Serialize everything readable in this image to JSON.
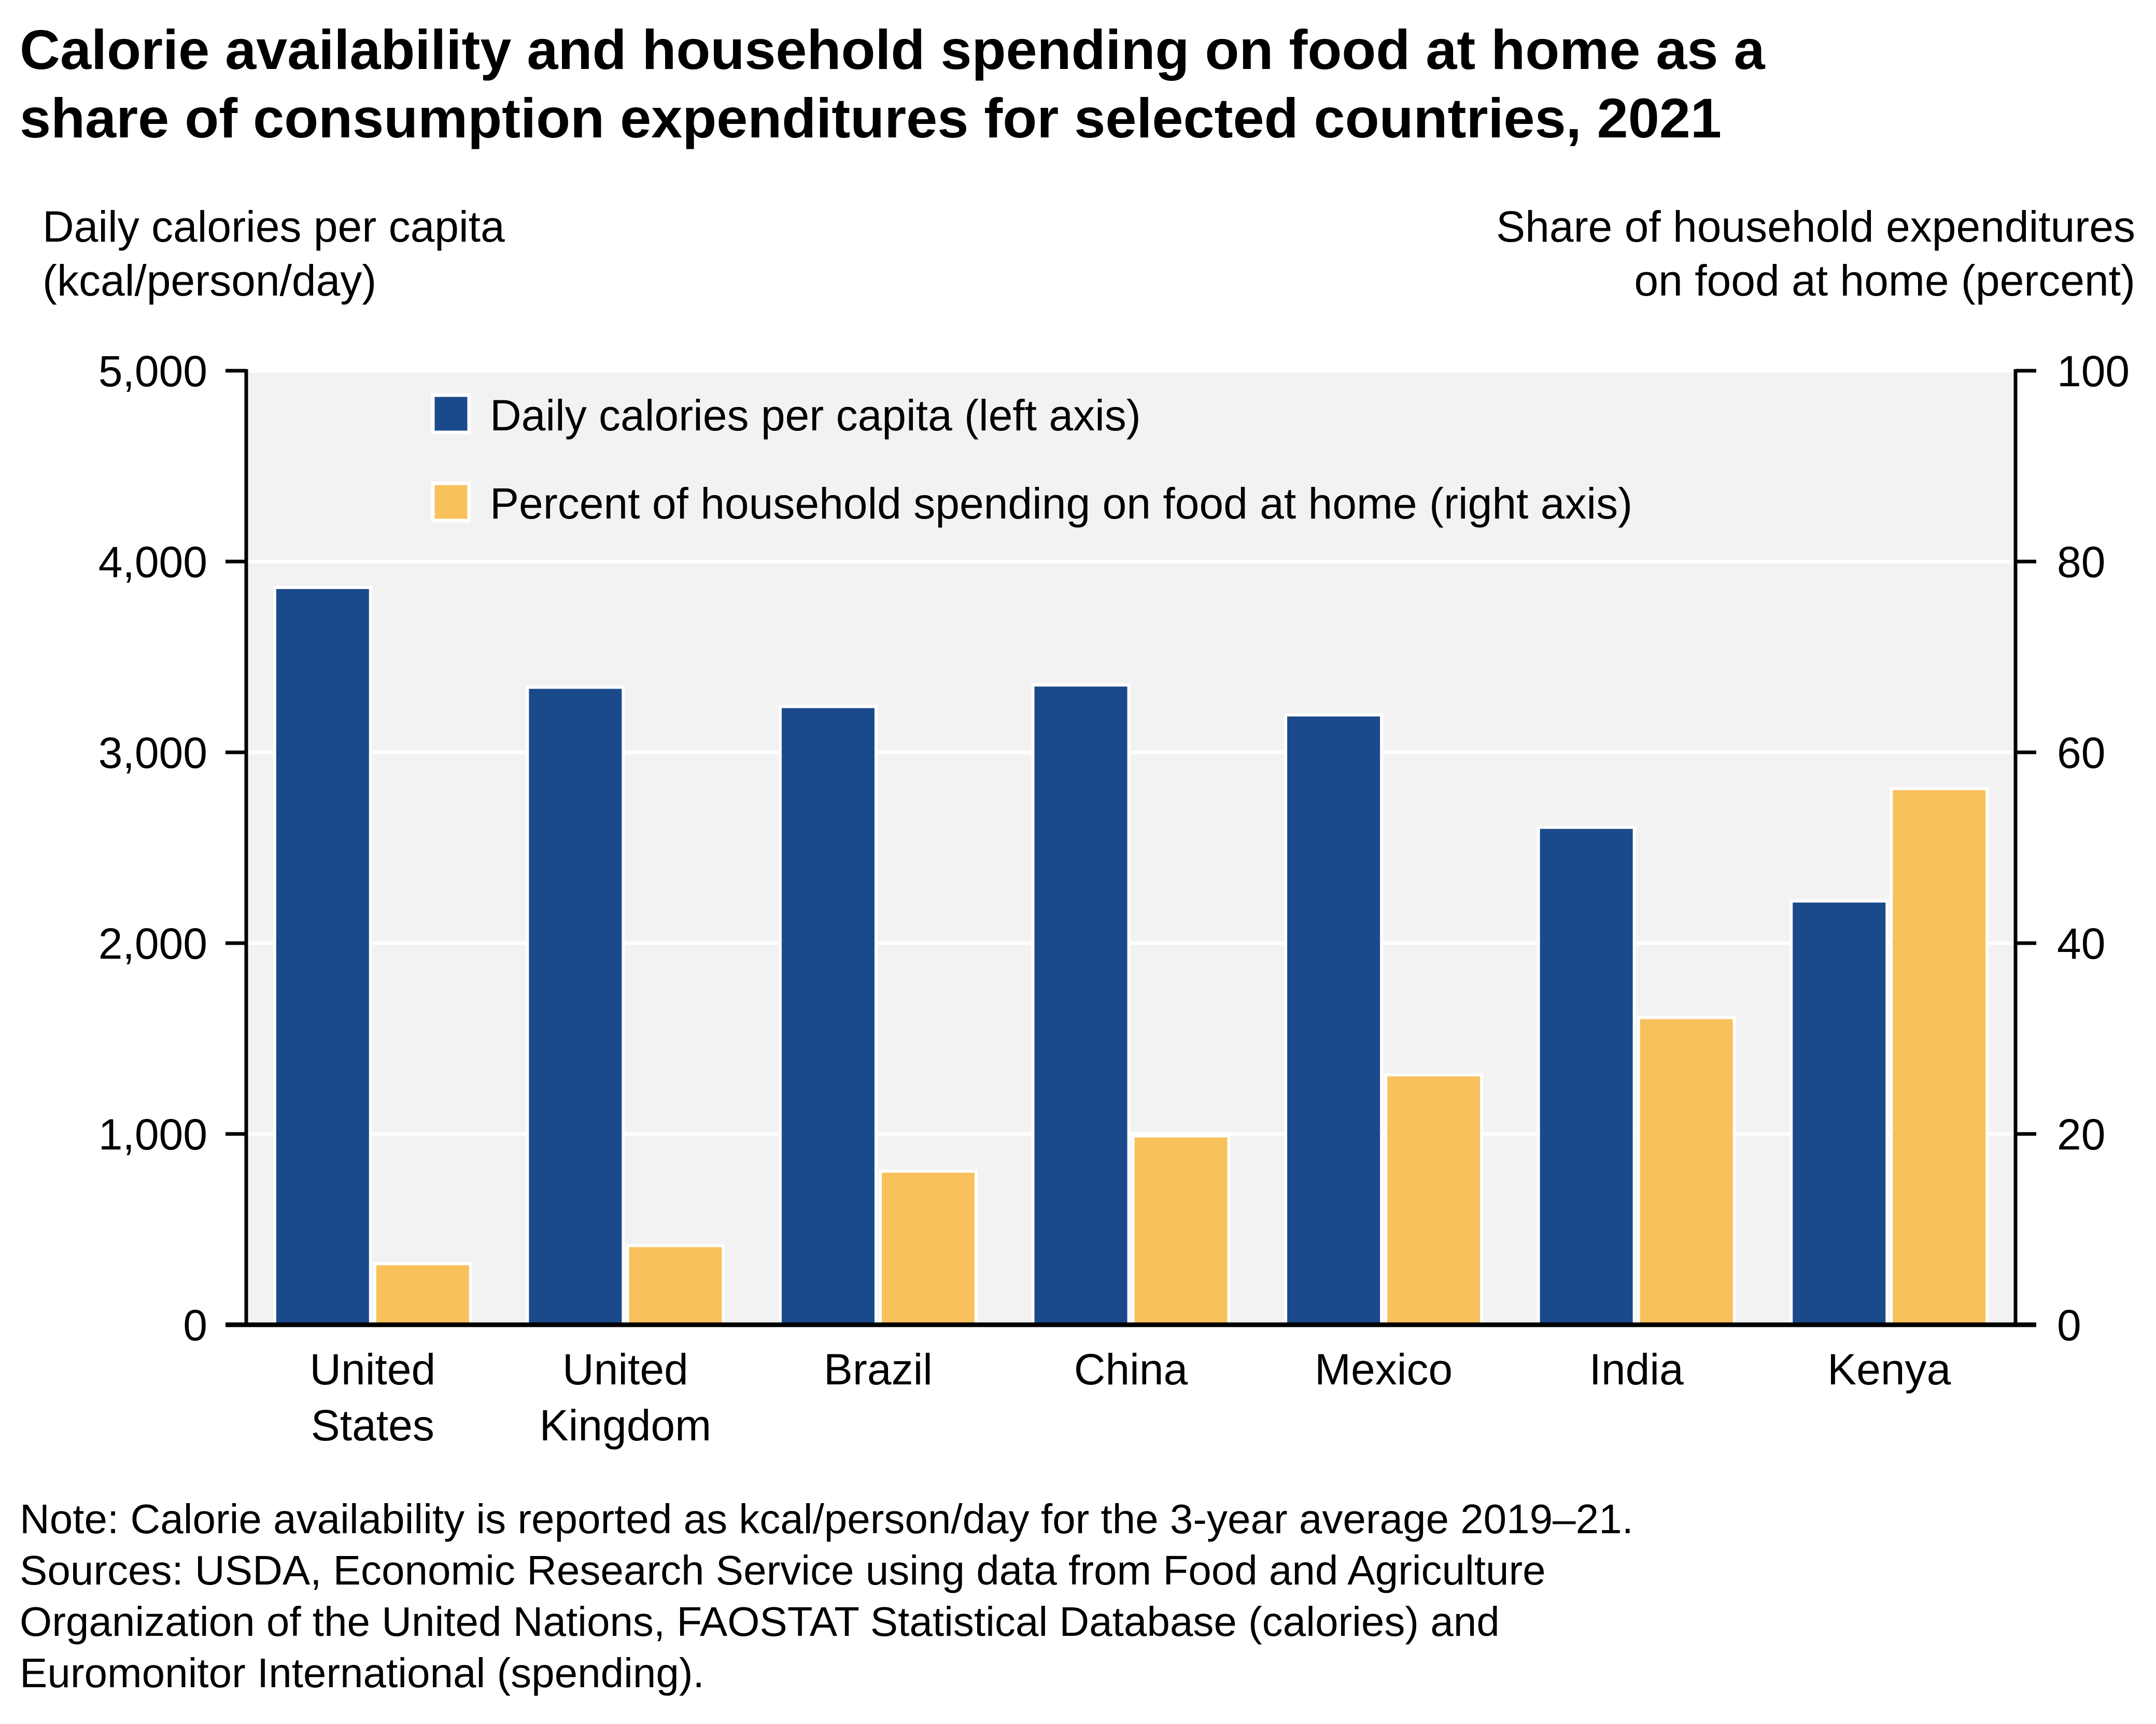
{
  "title_lines": [
    "Calorie availability and household spending on food at home as a",
    "share of consumption expenditures for selected countries, 2021"
  ],
  "footnote_lines": [
    "Note: Calorie availability is reported as kcal/person/day for the 3-year average 2019–21.",
    "Sources: USDA, Economic Research Service using data from Food and Agriculture",
    "Organization of the United Nations, FAOSTAT Statistical Database (calories) and",
    "Euromonitor International (spending)."
  ],
  "colors": {
    "calories": "#1B4A8C",
    "percent": "#F8C15C",
    "plot_bg": "#F2F2F2",
    "gridline": "#FFFFFF"
  },
  "chart_data": {
    "type": "bar",
    "title": "Calorie availability and household spending on food at home as a share of consumption expenditures for selected countries, 2021",
    "categories": [
      [
        "United",
        "States"
      ],
      [
        "United",
        "Kingdom"
      ],
      [
        "Brazil"
      ],
      [
        "China"
      ],
      [
        "Mexico"
      ],
      [
        "India"
      ],
      [
        "Kenya"
      ]
    ],
    "series": [
      {
        "name": "Daily calories per capita (left axis)",
        "axis": "left",
        "values": [
          3864,
          3341,
          3240,
          3353,
          3196,
          2607,
          2221
        ]
      },
      {
        "name": "Percent of household spending on food at home (right axis)",
        "axis": "right",
        "values": [
          6.4,
          8.3,
          16.1,
          19.8,
          26.2,
          32.2,
          56.2
        ]
      }
    ],
    "ylabel_left": [
      "Daily calories per capita",
      "(kcal/person/day)"
    ],
    "ylabel_right": [
      "Share of household expenditures",
      "on food at home (percent)"
    ],
    "ylim_left": [
      0,
      5000
    ],
    "ylim_right": [
      0,
      100
    ],
    "yticks_left": [
      "0",
      "1,000",
      "2,000",
      "3,000",
      "4,000",
      "5,000"
    ],
    "yticks_left_values": [
      0,
      1000,
      2000,
      3000,
      4000,
      5000
    ],
    "yticks_right": [
      "0",
      "20",
      "40",
      "60",
      "80",
      "100"
    ],
    "yticks_right_values": [
      0,
      20,
      40,
      60,
      80,
      100
    ],
    "grid": true,
    "legend_position": "top-center"
  }
}
